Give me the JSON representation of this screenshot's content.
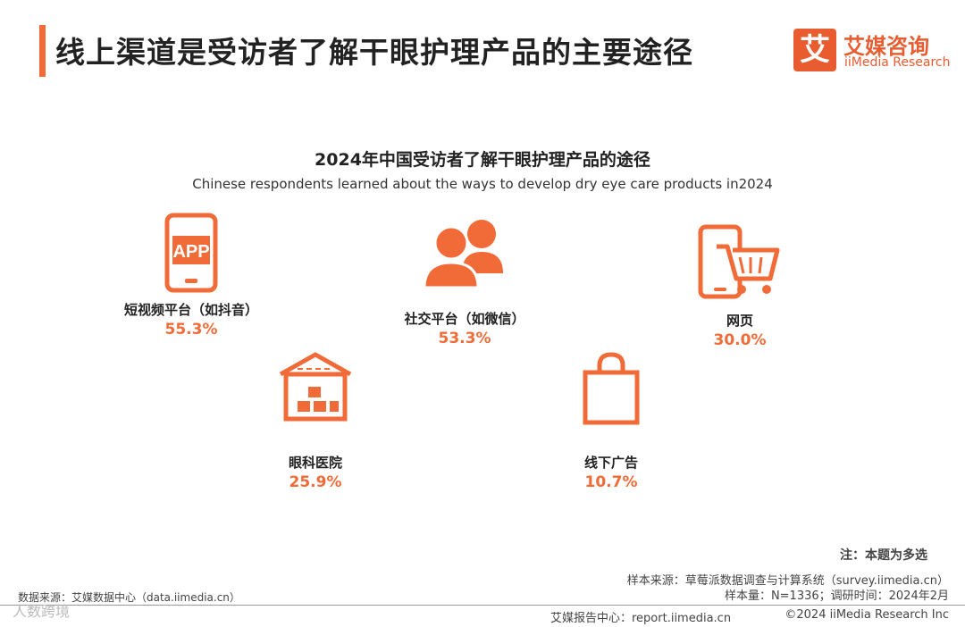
{
  "header": {
    "title": "线上渠道是受访者了解干眼护理产品的主要途径"
  },
  "logo": {
    "mark": "艾",
    "cn": "艾媒咨询",
    "en": "iiMedia Research"
  },
  "chart_data": {
    "type": "icon-value-grid",
    "title": "2024年中国受访者了解干眼护理产品的途径",
    "subtitle": "Chinese respondents learned about the ways to develop dry eye care products in2024",
    "unit": "%",
    "categories": [
      "短视频平台（如抖音）",
      "社交平台（如微信）",
      "网页",
      "眼科医院",
      "线下广告"
    ],
    "values": [
      55.3,
      53.3,
      30.0,
      25.9,
      10.7
    ],
    "value_labels": [
      "55.3%",
      "53.3%",
      "30.0%",
      "25.9%",
      "10.7%"
    ],
    "icons": [
      "app-phone-icon",
      "people-icon",
      "mobile-cart-icon",
      "warehouse-icon",
      "shopping-bag-icon"
    ],
    "accent_color": "#f06b37"
  },
  "notes": {
    "note": "注：本题为多选",
    "sample_source": "样本来源：草莓派数据调查与计算系统（survey.iimedia.cn）",
    "sample_size": "样本量：N=1336；调研时间：2024年2月",
    "data_source": "数据来源：艾媒数据中心（data.iimedia.cn）"
  },
  "footer": {
    "report": "艾媒报告中心：report.iimedia.cn",
    "copyright": "©2024  iiMedia Research  Inc",
    "watermark": "人数跨境"
  }
}
